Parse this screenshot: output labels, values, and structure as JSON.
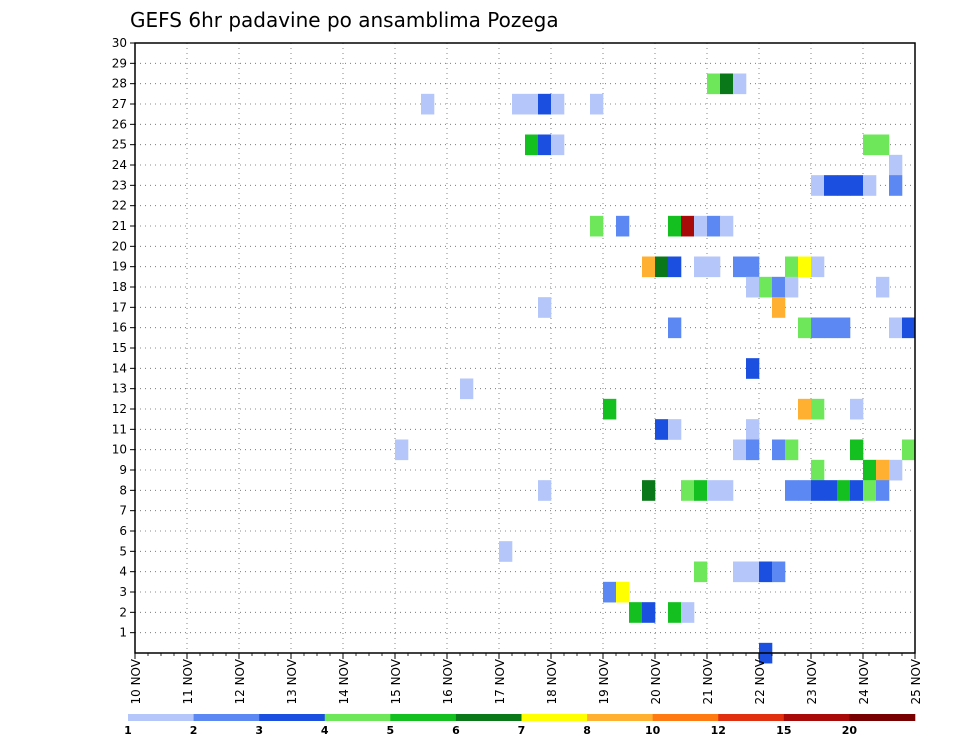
{
  "chart_data": {
    "type": "heatmap",
    "title": "GEFS 6hr padavine po ansamblima Pozega",
    "xlabel": "",
    "ylabel": "",
    "x_range": [
      10,
      25
    ],
    "x_ticks": [
      "10 NOV",
      "11 NOV",
      "12 NOV",
      "13 NOV",
      "14 NOV",
      "15 NOV",
      "16 NOV",
      "17 NOV",
      "18 NOV",
      "19 NOV",
      "20 NOV",
      "21 NOV",
      "22 NOV",
      "23 NOV",
      "24 NOV",
      "25 NOV"
    ],
    "y_range": [
      0,
      30
    ],
    "y_ticks": [
      1,
      2,
      3,
      4,
      5,
      6,
      7,
      8,
      9,
      10,
      11,
      12,
      13,
      14,
      15,
      16,
      17,
      18,
      19,
      20,
      21,
      22,
      23,
      24,
      25,
      26,
      27,
      28,
      29,
      30
    ],
    "grid": true,
    "colorbar": {
      "colors": [
        "#b4c6fa",
        "#5c88f4",
        "#1a4fe0",
        "#6ee85a",
        "#14c020",
        "#0a7818",
        "#ffff00",
        "#ffb030",
        "#ff7a10",
        "#e03010",
        "#a80a0a",
        "#780000"
      ],
      "labels": [
        "1",
        "2",
        "3",
        "4",
        "5",
        "6",
        "7",
        "8",
        "10",
        "12",
        "15",
        "20"
      ]
    },
    "cells": [
      {
        "member": 28,
        "day": 21.0,
        "level": 4
      },
      {
        "member": 28,
        "day": 21.25,
        "level": 6
      },
      {
        "member": 28,
        "day": 21.5,
        "level": 1
      },
      {
        "member": 27,
        "day": 15.5,
        "level": 1
      },
      {
        "member": 27,
        "day": 17.25,
        "level": 1
      },
      {
        "member": 27,
        "day": 17.5,
        "level": 1
      },
      {
        "member": 27,
        "day": 17.75,
        "level": 3
      },
      {
        "member": 27,
        "day": 18.0,
        "level": 1
      },
      {
        "member": 27,
        "day": 18.75,
        "level": 1
      },
      {
        "member": 25,
        "day": 17.5,
        "level": 5
      },
      {
        "member": 25,
        "day": 17.75,
        "level": 3
      },
      {
        "member": 25,
        "day": 18.0,
        "level": 1
      },
      {
        "member": 25,
        "day": 24.0,
        "level": 4
      },
      {
        "member": 25,
        "day": 24.25,
        "level": 4
      },
      {
        "member": 24,
        "day": 24.5,
        "level": 1
      },
      {
        "member": 23,
        "day": 23.0,
        "level": 1
      },
      {
        "member": 23,
        "day": 23.25,
        "level": 3
      },
      {
        "member": 23,
        "day": 23.5,
        "level": 3
      },
      {
        "member": 23,
        "day": 23.75,
        "level": 3
      },
      {
        "member": 23,
        "day": 24.0,
        "level": 1
      },
      {
        "member": 23,
        "day": 24.5,
        "level": 2
      },
      {
        "member": 21,
        "day": 18.75,
        "level": 4
      },
      {
        "member": 21,
        "day": 19.25,
        "level": 2
      },
      {
        "member": 21,
        "day": 20.25,
        "level": 5
      },
      {
        "member": 21,
        "day": 20.5,
        "level": 11
      },
      {
        "member": 21,
        "day": 20.75,
        "level": 1
      },
      {
        "member": 21,
        "day": 21.0,
        "level": 2
      },
      {
        "member": 21,
        "day": 21.25,
        "level": 1
      },
      {
        "member": 19,
        "day": 19.75,
        "level": 8
      },
      {
        "member": 19,
        "day": 20.0,
        "level": 6
      },
      {
        "member": 19,
        "day": 20.25,
        "level": 3
      },
      {
        "member": 19,
        "day": 20.75,
        "level": 1
      },
      {
        "member": 19,
        "day": 21.0,
        "level": 1
      },
      {
        "member": 19,
        "day": 21.5,
        "level": 2
      },
      {
        "member": 19,
        "day": 21.75,
        "level": 2
      },
      {
        "member": 19,
        "day": 22.5,
        "level": 4
      },
      {
        "member": 19,
        "day": 22.75,
        "level": 7
      },
      {
        "member": 19,
        "day": 23.0,
        "level": 1
      },
      {
        "member": 18,
        "day": 21.75,
        "level": 1
      },
      {
        "member": 18,
        "day": 22.0,
        "level": 4
      },
      {
        "member": 18,
        "day": 22.25,
        "level": 2
      },
      {
        "member": 18,
        "day": 22.5,
        "level": 1
      },
      {
        "member": 18,
        "day": 24.25,
        "level": 1
      },
      {
        "member": 17,
        "day": 17.75,
        "level": 1
      },
      {
        "member": 17,
        "day": 22.25,
        "level": 8
      },
      {
        "member": 16,
        "day": 20.25,
        "level": 2
      },
      {
        "member": 16,
        "day": 22.75,
        "level": 4
      },
      {
        "member": 16,
        "day": 23.0,
        "level": 2
      },
      {
        "member": 16,
        "day": 23.25,
        "level": 2
      },
      {
        "member": 16,
        "day": 23.5,
        "level": 2
      },
      {
        "member": 16,
        "day": 24.5,
        "level": 1
      },
      {
        "member": 16,
        "day": 24.75,
        "level": 3
      },
      {
        "member": 14,
        "day": 21.75,
        "level": 3
      },
      {
        "member": 13,
        "day": 16.25,
        "level": 1
      },
      {
        "member": 12,
        "day": 19.0,
        "level": 5
      },
      {
        "member": 12,
        "day": 22.75,
        "level": 8
      },
      {
        "member": 12,
        "day": 23.0,
        "level": 4
      },
      {
        "member": 12,
        "day": 23.75,
        "level": 1
      },
      {
        "member": 11,
        "day": 20.0,
        "level": 3
      },
      {
        "member": 11,
        "day": 20.25,
        "level": 1
      },
      {
        "member": 11,
        "day": 21.75,
        "level": 1
      },
      {
        "member": 10,
        "day": 15.0,
        "level": 1
      },
      {
        "member": 10,
        "day": 21.5,
        "level": 1
      },
      {
        "member": 10,
        "day": 21.75,
        "level": 2
      },
      {
        "member": 10,
        "day": 22.25,
        "level": 2
      },
      {
        "member": 10,
        "day": 22.5,
        "level": 4
      },
      {
        "member": 10,
        "day": 23.75,
        "level": 5
      },
      {
        "member": 10,
        "day": 24.75,
        "level": 4
      },
      {
        "member": 9,
        "day": 23.0,
        "level": 4
      },
      {
        "member": 9,
        "day": 24.0,
        "level": 5
      },
      {
        "member": 9,
        "day": 24.25,
        "level": 8
      },
      {
        "member": 9,
        "day": 24.5,
        "level": 1
      },
      {
        "member": 8,
        "day": 17.75,
        "level": 1
      },
      {
        "member": 8,
        "day": 19.75,
        "level": 6
      },
      {
        "member": 8,
        "day": 20.5,
        "level": 4
      },
      {
        "member": 8,
        "day": 20.75,
        "level": 5
      },
      {
        "member": 8,
        "day": 21.0,
        "level": 1
      },
      {
        "member": 8,
        "day": 21.25,
        "level": 1
      },
      {
        "member": 8,
        "day": 22.5,
        "level": 2
      },
      {
        "member": 8,
        "day": 22.75,
        "level": 2
      },
      {
        "member": 8,
        "day": 23.0,
        "level": 3
      },
      {
        "member": 8,
        "day": 23.25,
        "level": 3
      },
      {
        "member": 8,
        "day": 23.5,
        "level": 5
      },
      {
        "member": 8,
        "day": 23.75,
        "level": 3
      },
      {
        "member": 8,
        "day": 24.0,
        "level": 4
      },
      {
        "member": 8,
        "day": 24.25,
        "level": 2
      },
      {
        "member": 5,
        "day": 17.0,
        "level": 1
      },
      {
        "member": 4,
        "day": 20.75,
        "level": 4
      },
      {
        "member": 4,
        "day": 21.5,
        "level": 1
      },
      {
        "member": 4,
        "day": 21.75,
        "level": 1
      },
      {
        "member": 4,
        "day": 22.0,
        "level": 3
      },
      {
        "member": 4,
        "day": 22.25,
        "level": 2
      },
      {
        "member": 3,
        "day": 19.0,
        "level": 2
      },
      {
        "member": 3,
        "day": 19.25,
        "level": 7
      },
      {
        "member": 2,
        "day": 19.5,
        "level": 5
      },
      {
        "member": 2,
        "day": 19.75,
        "level": 3
      },
      {
        "member": 2,
        "day": 20.25,
        "level": 5
      },
      {
        "member": 2,
        "day": 20.5,
        "level": 1
      },
      {
        "member": 0,
        "day": 22.0,
        "level": 3
      }
    ]
  }
}
